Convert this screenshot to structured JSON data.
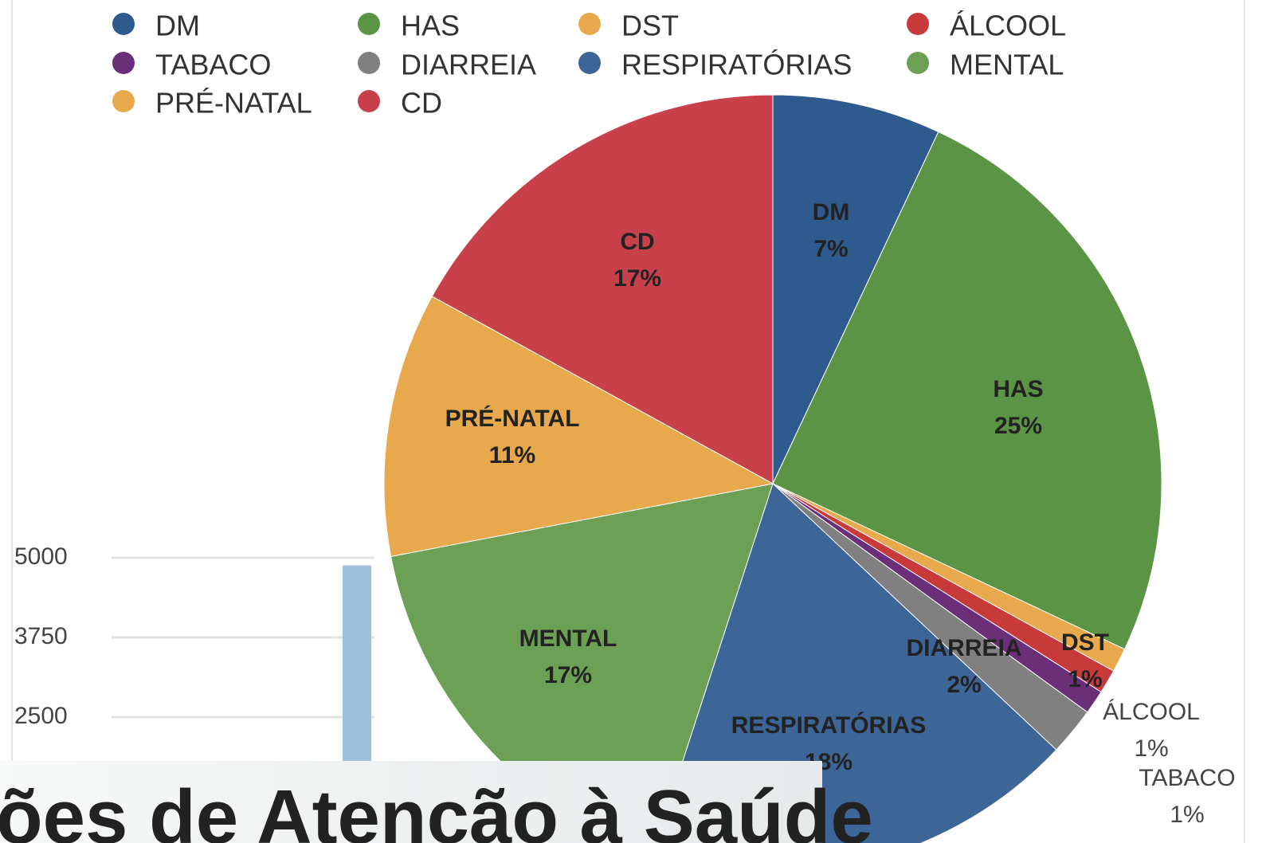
{
  "chart_data": [
    {
      "type": "pie",
      "categories": [
        "DM",
        "HAS",
        "DST",
        "ÁLCOOL",
        "TABACO",
        "DIARREIA",
        "RESPIRATÓRIAS",
        "MENTAL",
        "PRÉ-NATAL",
        "CD"
      ],
      "values": [
        7,
        25,
        1,
        1,
        1,
        2,
        18,
        17,
        11,
        17
      ],
      "value_labels": [
        "7%",
        "25%",
        "1%",
        "1%",
        "1%",
        "2%",
        "18%",
        "17%",
        "11%",
        "17%"
      ],
      "colors": [
        "#2e5a8e",
        "#5a9444",
        "#e8a84c",
        "#c8393a",
        "#6b2f7a",
        "#808080",
        "#3e6598",
        "#6ba055",
        "#e8a84c",
        "#c8414a"
      ],
      "legend": "top"
    },
    {
      "type": "bar",
      "categories": [
        null
      ],
      "values": [
        4880
      ],
      "color": "#9fc1de",
      "ylim": [
        0,
        5000
      ],
      "yticks": [
        2500,
        3750,
        5000
      ],
      "grid": true
    }
  ],
  "banner": {
    "text": "ões de Atenção à Saúde"
  }
}
